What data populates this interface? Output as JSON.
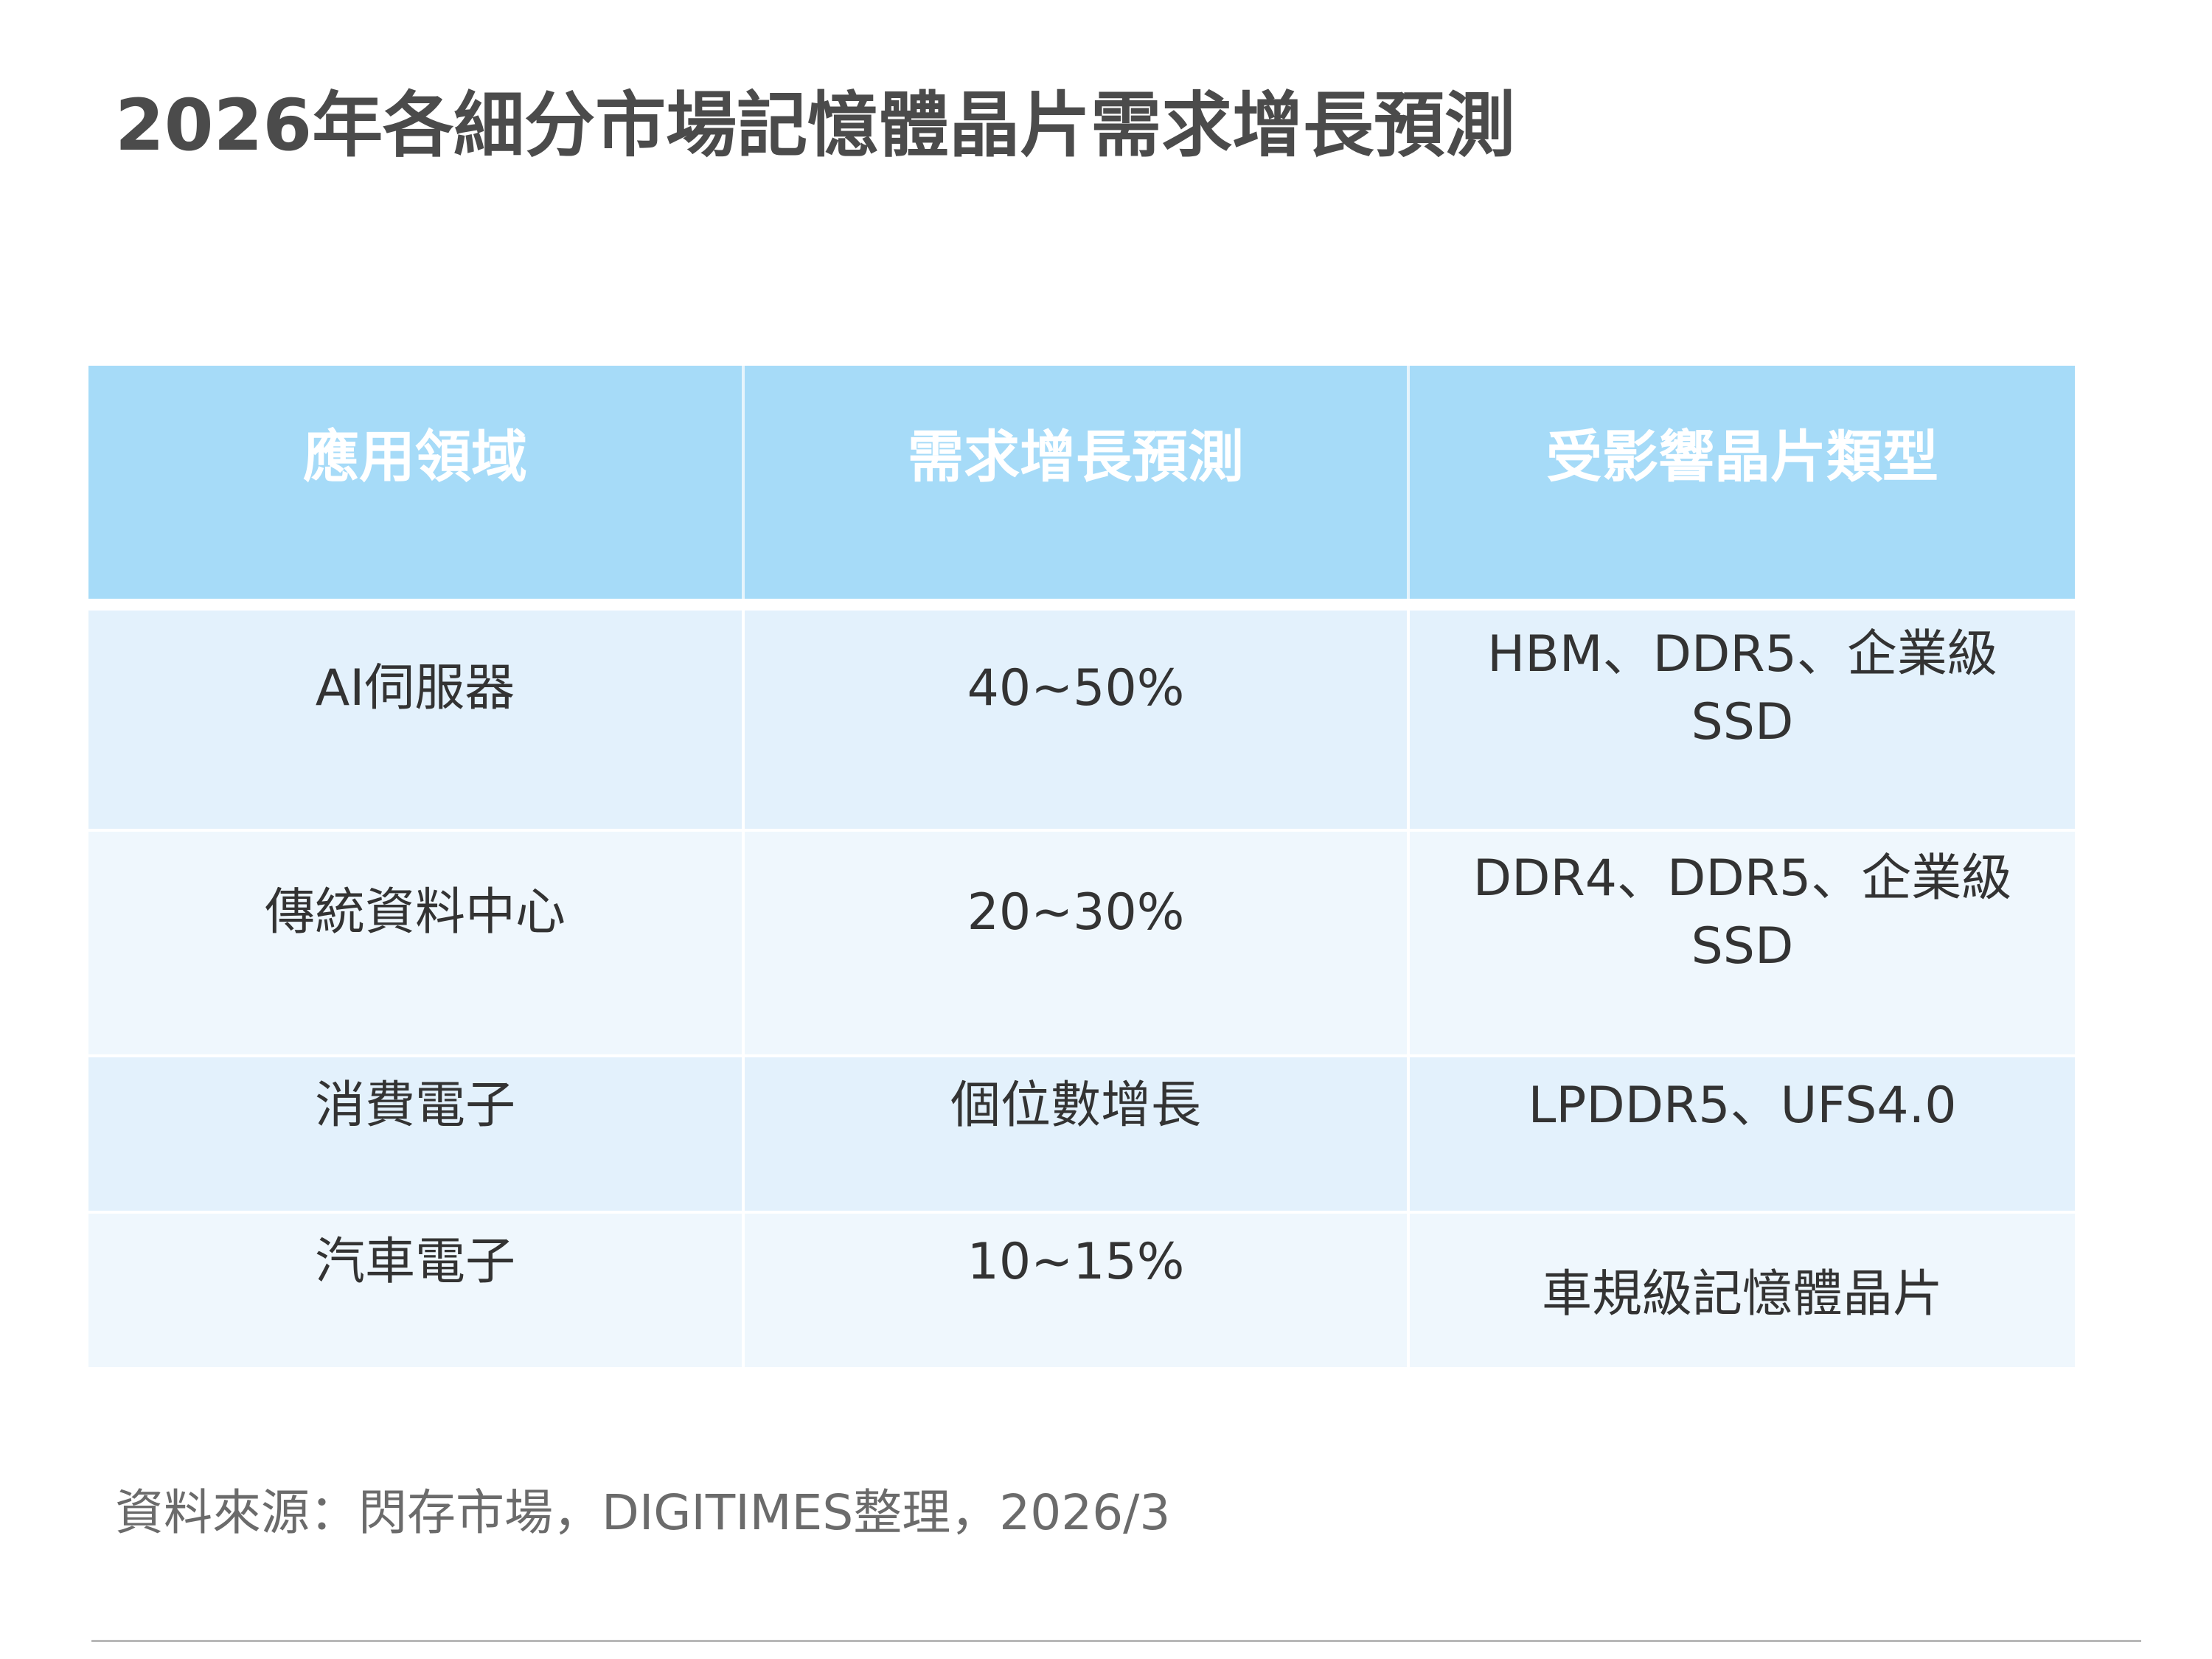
{
  "title": "2026年各細分市場記憶體晶片需求增長預測",
  "chart_data": {
    "type": "table",
    "columns": [
      "應用領域",
      "需求增長預測",
      "受影響晶片類型"
    ],
    "rows": [
      {
        "domain": "AI伺服器",
        "growth": "40~50%",
        "chips_line1": "HBM、DDR5、企業級",
        "chips_line2": "SSD"
      },
      {
        "domain": "傳統資料中心",
        "growth": "20~30%",
        "chips_line1": "DDR4、DDR5、企業級",
        "chips_line2": "SSD"
      },
      {
        "domain": "消費電子",
        "growth": "個位數增長",
        "chips_line1": "LPDDR5、UFS4.0",
        "chips_line2": ""
      },
      {
        "domain": "汽車電子",
        "growth": "10~15%",
        "chips_line1": "車規級記憶體晶片",
        "chips_line2": ""
      }
    ]
  },
  "source": "資料來源：閃存市場，DIGITIMES整理，2026/3",
  "colors": {
    "header_bg": "#a6dbf8",
    "header_text": "#ffffff",
    "row_odd_bg": "#e3f1fc",
    "row_even_bg": "#eff7fd",
    "title_text": "#4b4b4b",
    "source_text": "#6b6b6b"
  }
}
